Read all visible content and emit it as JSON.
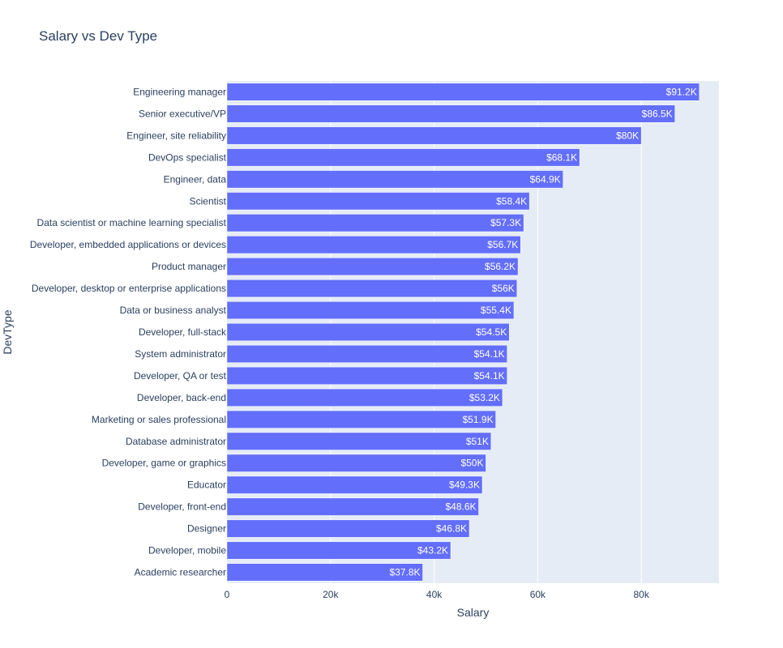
{
  "chart_data": {
    "type": "bar",
    "orientation": "horizontal",
    "title": "Salary vs Dev Type",
    "xlabel": "Salary",
    "ylabel": "DevType",
    "xlim": [
      0,
      95000
    ],
    "x_ticks": [
      {
        "value": 0,
        "label": "0"
      },
      {
        "value": 20000,
        "label": "20k"
      },
      {
        "value": 40000,
        "label": "40k"
      },
      {
        "value": 60000,
        "label": "60k"
      },
      {
        "value": 80000,
        "label": "80k"
      }
    ],
    "grid": true,
    "bar_color": "#636efa",
    "plot_bg": "#e5ecf6",
    "categories": [
      "Engineering manager",
      "Senior executive/VP",
      "Engineer, site reliability",
      "DevOps specialist",
      "Engineer, data",
      "Scientist",
      "Data scientist or machine learning specialist",
      "Developer, embedded applications or devices",
      "Product manager",
      "Developer, desktop or enterprise applications",
      "Data or business analyst",
      "Developer, full-stack",
      "System administrator",
      "Developer, QA or test",
      "Developer, back-end",
      "Marketing or sales professional",
      "Database administrator",
      "Developer, game or graphics",
      "Educator",
      "Developer, front-end",
      "Designer",
      "Developer, mobile",
      "Academic researcher"
    ],
    "values": [
      91200,
      86500,
      80000,
      68100,
      64900,
      58400,
      57300,
      56700,
      56200,
      56000,
      55400,
      54500,
      54100,
      54100,
      53200,
      51900,
      51000,
      50000,
      49300,
      48600,
      46800,
      43200,
      37800
    ],
    "value_labels": [
      "$91.2K",
      "$86.5K",
      "$80K",
      "$68.1K",
      "$64.9K",
      "$58.4K",
      "$57.3K",
      "$56.7K",
      "$56.2K",
      "$56K",
      "$55.4K",
      "$54.5K",
      "$54.1K",
      "$54.1K",
      "$53.2K",
      "$51.9K",
      "$51K",
      "$50K",
      "$49.3K",
      "$48.6K",
      "$46.8K",
      "$43.2K",
      "$37.8K"
    ]
  }
}
